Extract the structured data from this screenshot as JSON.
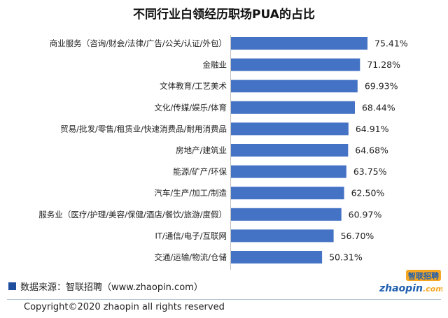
{
  "chart_data": {
    "type": "bar",
    "orientation": "horizontal",
    "title": "不同行业白领经历职场PUA的占比",
    "categories": [
      "商业服务（咨询/财会/法律/广告/公关/认证/外包）",
      "金融业",
      "文体教育/工艺美术",
      "文化/传媒/娱乐/体育",
      "贸易/批发/零售/租赁业/快速消费品/耐用消费品",
      "房地产/建筑业",
      "能源/矿产/环保",
      "汽车/生产/加工/制造",
      "服务业（医疗/护理/美容/保健/酒店/餐饮/旅游/度假）",
      "IT/通信/电子/互联网",
      "交通/运输/物流/仓储"
    ],
    "values": [
      75.41,
      71.28,
      69.93,
      68.44,
      64.91,
      64.68,
      63.75,
      62.5,
      60.97,
      56.7,
      50.31
    ],
    "value_labels": [
      "75.41%",
      "71.28%",
      "69.93%",
      "68.44%",
      "64.91%",
      "64.68%",
      "63.75%",
      "62.50%",
      "60.97%",
      "56.70%",
      "50.31%"
    ],
    "xlim": [
      0,
      75.41
    ],
    "grid": false,
    "bar_color": "#4472C4"
  },
  "source": "数据来源：智联招聘（www.zhaopin.com）",
  "logo": {
    "latin": "zhaopin",
    "suffix": ".com",
    "cn": "智联招聘"
  },
  "copyright": "Copyright©2020 zhaopin all rights reserved",
  "colors": {
    "bar": "#4472C4",
    "legend_square": "#1F4E9E",
    "logo_blue": "#1F5FB0",
    "logo_orange": "#F5A623"
  }
}
